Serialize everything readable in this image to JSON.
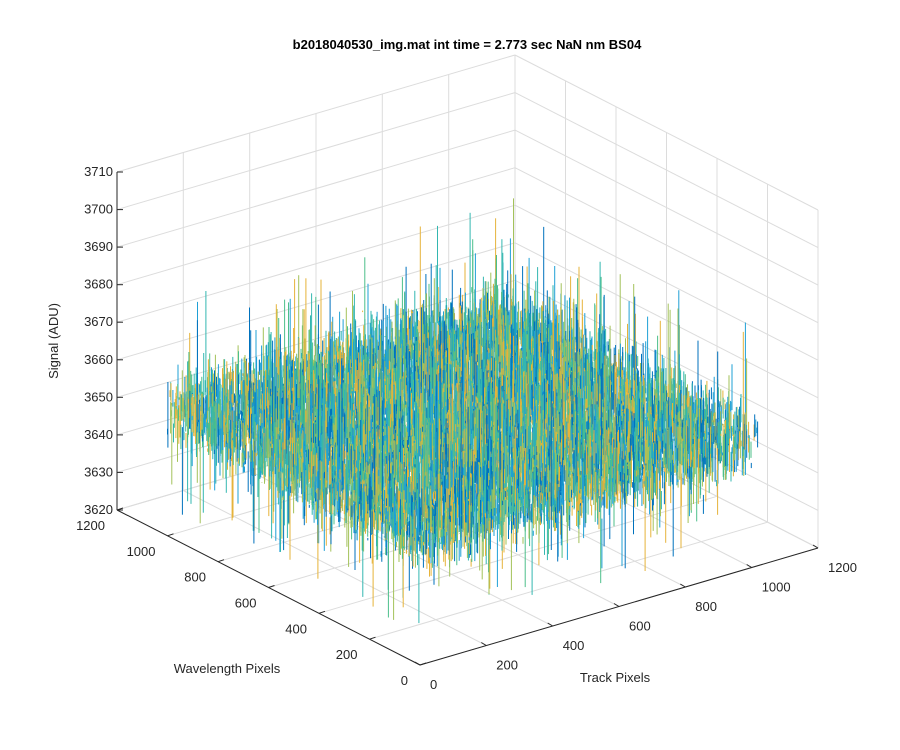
{
  "chart_data": {
    "type": "surface-mesh",
    "title": "b2018040530_img.mat int time = 2.773 sec  NaN nm BS04",
    "xlabel": "Track Pixels",
    "ylabel": "Wavelength Pixels",
    "zlabel": "Signal (ADU)",
    "x_ticks": [
      "0",
      "200",
      "400",
      "600",
      "800",
      "1000",
      "1200"
    ],
    "y_ticks": [
      "0",
      "200",
      "400",
      "600",
      "800",
      "1000",
      "1200"
    ],
    "z_ticks": [
      "3620",
      "3630",
      "3640",
      "3650",
      "3660",
      "3670",
      "3680",
      "3690",
      "3700",
      "3710"
    ],
    "xlim": [
      0,
      1200
    ],
    "ylim": [
      0,
      1200
    ],
    "zlim": [
      3620,
      3710
    ],
    "data_extent": {
      "x": [
        0,
        1024
      ],
      "y": [
        0,
        1024
      ]
    },
    "signal_mean": 3653,
    "signal_range": [
      3627,
      3703
    ],
    "grid": true,
    "colormap": [
      "#0072bd",
      "#1fa0d6",
      "#33b7b0",
      "#4cbf8a",
      "#a3c25a",
      "#e6b33a"
    ]
  }
}
